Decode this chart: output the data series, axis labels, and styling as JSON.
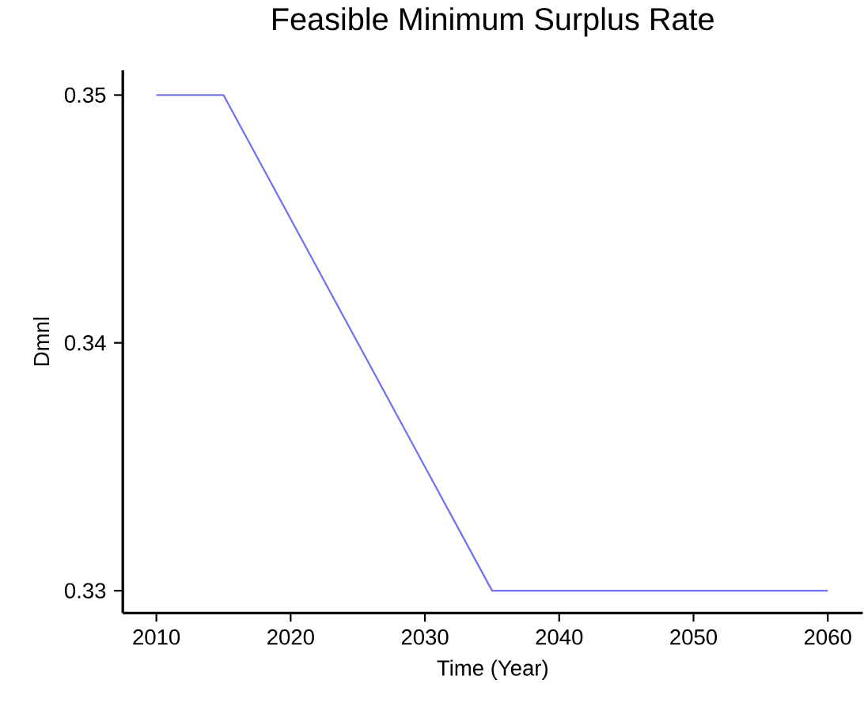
{
  "chart_data": {
    "type": "line",
    "title": "Feasible Minimum Surplus Rate",
    "xlabel": "Time (Year)",
    "ylabel": "Dmnl",
    "x": [
      2010,
      2015,
      2035,
      2060
    ],
    "series": [
      {
        "color": "#6f6ff5",
        "values": [
          0.35,
          0.35,
          0.33,
          0.33
        ]
      }
    ],
    "xlim": [
      2007.5,
      2062.6
    ],
    "ylim": [
      0.3291,
      0.351
    ],
    "xticks": [
      2010,
      2020,
      2030,
      2040,
      2050,
      2060
    ],
    "yticks": [
      0.33,
      0.34,
      0.35
    ],
    "grid": false,
    "marker": "none",
    "line_style": "solid"
  }
}
